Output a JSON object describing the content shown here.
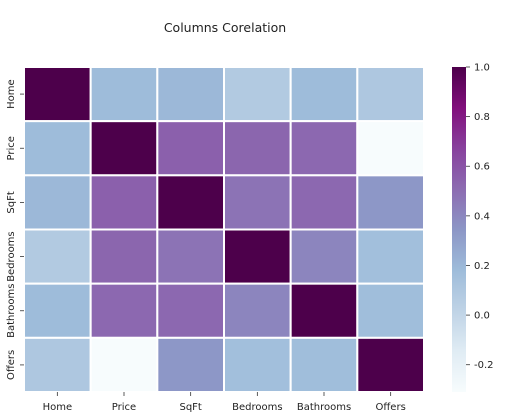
{
  "chart_data": {
    "type": "heatmap",
    "title": "Columns Corelation",
    "xlabel": "",
    "ylabel": "",
    "columns": [
      "Home",
      "Price",
      "SqFt",
      "Bedrooms",
      "Bathrooms",
      "Offers"
    ],
    "rows": [
      "Home",
      "Price",
      "SqFt",
      "Bedrooms",
      "Bathrooms",
      "Offers"
    ],
    "values": [
      [
        1.0,
        0.18,
        0.2,
        0.08,
        0.18,
        0.1
      ],
      [
        0.18,
        1.0,
        0.55,
        0.53,
        0.52,
        -0.31
      ],
      [
        0.2,
        0.55,
        1.0,
        0.48,
        0.52,
        0.34
      ],
      [
        0.08,
        0.53,
        0.48,
        1.0,
        0.41,
        0.16
      ],
      [
        0.18,
        0.52,
        0.52,
        0.41,
        1.0,
        0.17
      ],
      [
        0.1,
        -0.31,
        0.34,
        0.16,
        0.17,
        1.0
      ]
    ],
    "colorbar": {
      "min": -0.31,
      "max": 1.0,
      "ticks": [
        "-0.2",
        "0.0",
        "0.2",
        "0.4",
        "0.6",
        "0.8",
        "1.0"
      ],
      "tick_values": [
        -0.2,
        0.0,
        0.2,
        0.4,
        0.6,
        0.8,
        1.0
      ],
      "colormap": "BuPu",
      "colors": [
        "#f7fcfd",
        "#e0ecf4",
        "#bfd3e6",
        "#9ebcda",
        "#8c96c6",
        "#8c6bb1",
        "#88419d",
        "#810f7c",
        "#4d004b"
      ]
    },
    "grid_line_color": "#ffffff"
  }
}
